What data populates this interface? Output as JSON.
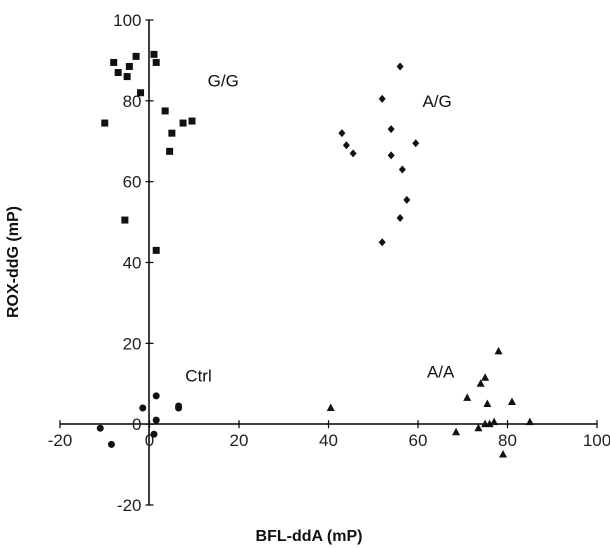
{
  "chart_data": {
    "type": "scatter",
    "xlabel": "BFL-ddA (mP)",
    "ylabel": "ROX-ddG (mP)",
    "xlim": [
      -20,
      100
    ],
    "ylim": [
      -20,
      100
    ],
    "x_ticks": [
      -20,
      0,
      20,
      40,
      60,
      80,
      100
    ],
    "y_ticks": [
      -20,
      0,
      20,
      40,
      60,
      80,
      100
    ],
    "grid": false,
    "legend": "none",
    "series": [
      {
        "name": "G/G",
        "marker": "square",
        "points": [
          [
            -10,
            74.5
          ],
          [
            -8,
            89.5
          ],
          [
            -7,
            87
          ],
          [
            -4.5,
            88.5
          ],
          [
            -5,
            86
          ],
          [
            -3,
            91
          ],
          [
            -2,
            82
          ],
          [
            -5.5,
            50.5
          ],
          [
            1,
            91.5
          ],
          [
            1.5,
            89.5
          ],
          [
            3.5,
            77.5
          ],
          [
            5,
            72
          ],
          [
            4.5,
            67.5
          ],
          [
            7.5,
            74.5
          ],
          [
            9.5,
            75
          ],
          [
            1.5,
            43
          ]
        ]
      },
      {
        "name": "A/G",
        "marker": "diamond",
        "points": [
          [
            43,
            72
          ],
          [
            44,
            69
          ],
          [
            45.5,
            67
          ],
          [
            52,
            80.5
          ],
          [
            54,
            73
          ],
          [
            56,
            88.5
          ],
          [
            54,
            66.5
          ],
          [
            56.5,
            63
          ],
          [
            59.5,
            69.5
          ],
          [
            57.5,
            55.5
          ],
          [
            56,
            51
          ],
          [
            52,
            45
          ]
        ]
      },
      {
        "name": "A/A",
        "marker": "triangle",
        "points": [
          [
            40.5,
            4
          ],
          [
            68.5,
            -2
          ],
          [
            71,
            6.5
          ],
          [
            73.5,
            -1
          ],
          [
            74,
            10
          ],
          [
            75,
            11.5
          ],
          [
            76,
            0
          ],
          [
            75.5,
            5
          ],
          [
            75,
            0
          ],
          [
            77,
            0.5
          ],
          [
            78,
            18
          ],
          [
            81,
            5.5
          ],
          [
            85,
            0.5
          ],
          [
            79,
            -7.5
          ]
        ]
      },
      {
        "name": "Ctrl",
        "marker": "circle",
        "points": [
          [
            -11,
            -1
          ],
          [
            -8.5,
            -5
          ],
          [
            -1.5,
            4
          ],
          [
            1.5,
            7
          ],
          [
            6.5,
            4
          ],
          [
            6.5,
            4.5
          ],
          [
            1.5,
            1
          ],
          [
            1,
            -2.5
          ]
        ]
      }
    ],
    "group_labels": [
      {
        "text": "G/G",
        "x": 13,
        "y": 83.5
      },
      {
        "text": "A/G",
        "x": 61,
        "y": 78.5
      },
      {
        "text": "A/A",
        "x": 62,
        "y": 11.5
      },
      {
        "text": "Ctrl",
        "x": 8,
        "y": 10.5
      }
    ]
  }
}
